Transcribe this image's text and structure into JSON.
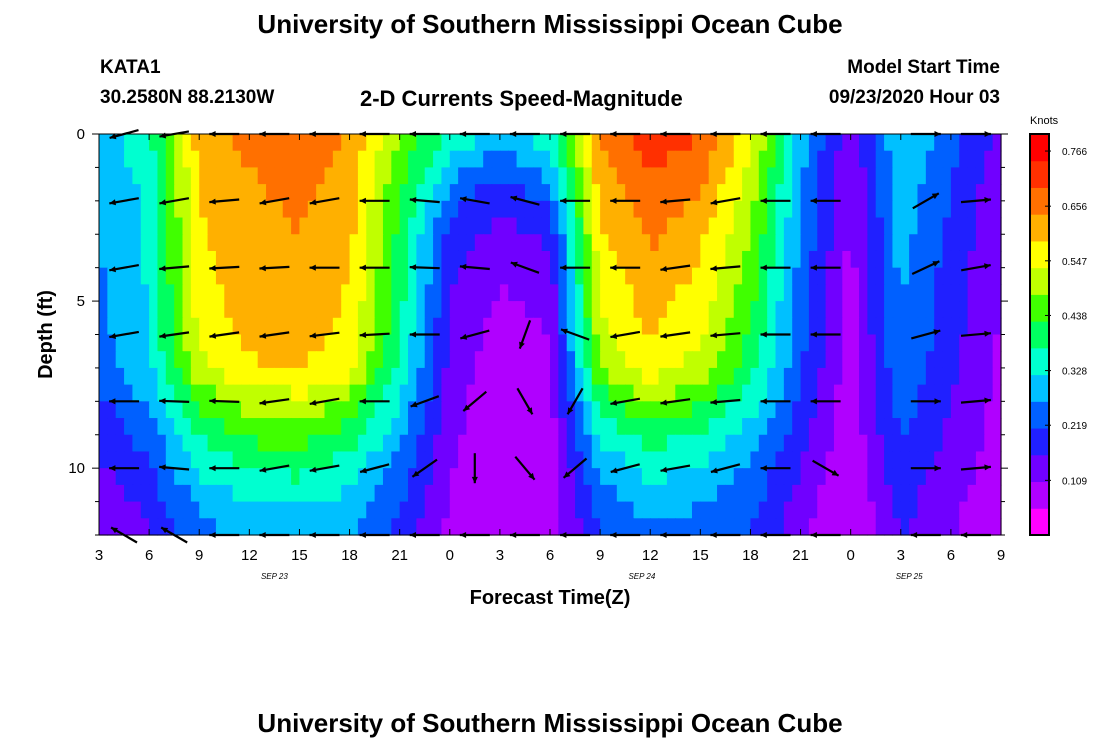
{
  "header": {
    "title_top": "University of Southern Mississippi Ocean Cube",
    "station_id": "KATA1",
    "station_coords": "30.2580N 88.2130W",
    "plot_title": "2-D Currents Speed-Magnitude",
    "model_start_label": "Model Start Time",
    "model_start_value": "09/23/2020 Hour 03"
  },
  "footer": {
    "title_bottom": "University of Southern Mississippi Ocean Cube"
  },
  "colors": {
    "palette": [
      "#ff00ff",
      "#b000ff",
      "#7000ff",
      "#2020ff",
      "#0060ff",
      "#00c0ff",
      "#00ffd0",
      "#00ff60",
      "#40ff00",
      "#c0ff00",
      "#ffff00",
      "#ffb000",
      "#ff7000",
      "#ff3000",
      "#ff0000"
    ],
    "arrow": "#000000"
  },
  "chart_data": {
    "type": "heatmap",
    "title": "2-D Currents Speed-Magnitude",
    "xlabel": "Forecast Time(Z)",
    "ylabel": "Depth (ft)",
    "x_start_hour": 3,
    "x_end_hour": 57,
    "x_tick_hours": [
      3,
      6,
      9,
      12,
      15,
      18,
      21,
      24,
      27,
      30,
      33,
      36,
      39,
      42,
      45,
      48,
      51,
      54,
      57
    ],
    "x_tick_labels": [
      "3",
      "6",
      "9",
      "12",
      "15",
      "18",
      "21",
      "0",
      "3",
      "6",
      "9",
      "12",
      "15",
      "18",
      "21",
      "0",
      "3",
      "6",
      "9"
    ],
    "date_labels": [
      {
        "hour": 13.5,
        "text": "SEP 23"
      },
      {
        "hour": 35.5,
        "text": "SEP 24"
      },
      {
        "hour": 51.5,
        "text": "SEP 25"
      }
    ],
    "ylim": [
      0,
      12
    ],
    "y_ticks": [
      0,
      5,
      10
    ],
    "depths_ft": [
      0,
      1,
      2,
      3,
      4,
      5,
      6,
      7,
      8,
      9,
      10,
      11,
      12
    ],
    "hour_nodes": [
      3,
      6,
      9,
      12,
      15,
      18,
      21,
      24,
      27,
      30,
      33,
      36,
      39,
      42,
      45,
      48,
      51,
      54,
      57
    ],
    "speed_knots": [
      [
        0.3,
        0.36,
        0.62,
        0.66,
        0.68,
        0.64,
        0.48,
        0.38,
        0.3,
        0.36,
        0.66,
        0.73,
        0.7,
        0.56,
        0.3,
        0.12,
        0.32,
        0.24,
        0.14
      ],
      [
        0.28,
        0.34,
        0.6,
        0.64,
        0.66,
        0.62,
        0.45,
        0.3,
        0.22,
        0.3,
        0.62,
        0.7,
        0.66,
        0.52,
        0.28,
        0.11,
        0.31,
        0.22,
        0.13
      ],
      [
        0.27,
        0.33,
        0.59,
        0.63,
        0.65,
        0.61,
        0.43,
        0.24,
        0.17,
        0.22,
        0.6,
        0.67,
        0.63,
        0.5,
        0.27,
        0.1,
        0.3,
        0.21,
        0.12
      ],
      [
        0.27,
        0.33,
        0.58,
        0.62,
        0.64,
        0.6,
        0.41,
        0.2,
        0.14,
        0.17,
        0.58,
        0.65,
        0.6,
        0.48,
        0.26,
        0.1,
        0.29,
        0.2,
        0.12
      ],
      [
        0.26,
        0.33,
        0.57,
        0.62,
        0.63,
        0.59,
        0.4,
        0.18,
        0.12,
        0.14,
        0.56,
        0.63,
        0.58,
        0.46,
        0.25,
        0.09,
        0.28,
        0.19,
        0.11
      ],
      [
        0.26,
        0.32,
        0.56,
        0.61,
        0.62,
        0.58,
        0.39,
        0.16,
        0.1,
        0.12,
        0.54,
        0.61,
        0.56,
        0.44,
        0.24,
        0.09,
        0.27,
        0.18,
        0.11
      ],
      [
        0.25,
        0.32,
        0.55,
        0.6,
        0.61,
        0.57,
        0.38,
        0.15,
        0.08,
        0.11,
        0.52,
        0.59,
        0.54,
        0.42,
        0.23,
        0.08,
        0.27,
        0.18,
        0.1
      ],
      [
        0.24,
        0.31,
        0.52,
        0.58,
        0.59,
        0.55,
        0.36,
        0.14,
        0.07,
        0.1,
        0.48,
        0.56,
        0.51,
        0.4,
        0.22,
        0.08,
        0.26,
        0.17,
        0.1
      ],
      [
        0.2,
        0.28,
        0.44,
        0.5,
        0.52,
        0.47,
        0.32,
        0.13,
        0.07,
        0.09,
        0.4,
        0.48,
        0.44,
        0.35,
        0.2,
        0.07,
        0.24,
        0.16,
        0.09
      ],
      [
        0.17,
        0.24,
        0.38,
        0.44,
        0.45,
        0.4,
        0.28,
        0.12,
        0.07,
        0.08,
        0.33,
        0.4,
        0.37,
        0.3,
        0.18,
        0.07,
        0.22,
        0.15,
        0.08
      ],
      [
        0.15,
        0.21,
        0.33,
        0.38,
        0.39,
        0.35,
        0.25,
        0.11,
        0.07,
        0.08,
        0.28,
        0.34,
        0.31,
        0.26,
        0.16,
        0.06,
        0.2,
        0.14,
        0.07
      ],
      [
        0.12,
        0.18,
        0.28,
        0.32,
        0.33,
        0.3,
        0.22,
        0.1,
        0.07,
        0.08,
        0.24,
        0.29,
        0.27,
        0.23,
        0.14,
        0.05,
        0.18,
        0.12,
        0.06
      ],
      [
        0.1,
        0.16,
        0.25,
        0.28,
        0.29,
        0.27,
        0.2,
        0.09,
        0.06,
        0.07,
        0.21,
        0.26,
        0.24,
        0.21,
        0.12,
        0.05,
        0.16,
        0.11,
        0.05
      ]
    ],
    "arrow_hours": [
      4.5,
      7.5,
      10.5,
      13.5,
      16.5,
      19.5,
      22.5,
      25.5,
      28.5,
      31.5,
      34.5,
      37.5,
      40.5,
      43.5,
      46.5,
      52.5,
      55.5
    ],
    "arrow_depths_ft": [
      0,
      2,
      4,
      6,
      8,
      10,
      12
    ],
    "arrow_directions_deg": [
      [
        195,
        190,
        180,
        180,
        180,
        180,
        180,
        180,
        180,
        180,
        180,
        180,
        180,
        180,
        180,
        0,
        0
      ],
      [
        190,
        190,
        185,
        190,
        190,
        180,
        175,
        170,
        165,
        180,
        180,
        185,
        190,
        180,
        180,
        30,
        5
      ],
      [
        190,
        185,
        183,
        183,
        180,
        180,
        178,
        175,
        160,
        180,
        180,
        188,
        185,
        180,
        180,
        25,
        10
      ],
      [
        190,
        188,
        188,
        188,
        187,
        183,
        180,
        195,
        250,
        160,
        190,
        188,
        185,
        180,
        180,
        15,
        5
      ],
      [
        180,
        178,
        178,
        188,
        190,
        180,
        200,
        220,
        300,
        240,
        190,
        188,
        185,
        180,
        180,
        0,
        5
      ],
      [
        180,
        175,
        180,
        190,
        190,
        195,
        215,
        270,
        310,
        220,
        195,
        190,
        195,
        180,
        330,
        0,
        5
      ],
      [
        150,
        150,
        180,
        180,
        180,
        180,
        180,
        180,
        180,
        180,
        180,
        180,
        180,
        180,
        180,
        180,
        180
      ]
    ],
    "colorbar": {
      "label": "Knots",
      "min": 0.0,
      "max": 0.8,
      "tick_values": [
        0.109,
        0.219,
        0.328,
        0.438,
        0.547,
        0.656,
        0.766
      ],
      "tick_labels": [
        "0.109",
        "0.219",
        "0.328",
        "0.438",
        "0.547",
        "0.656",
        "0.766"
      ]
    }
  }
}
